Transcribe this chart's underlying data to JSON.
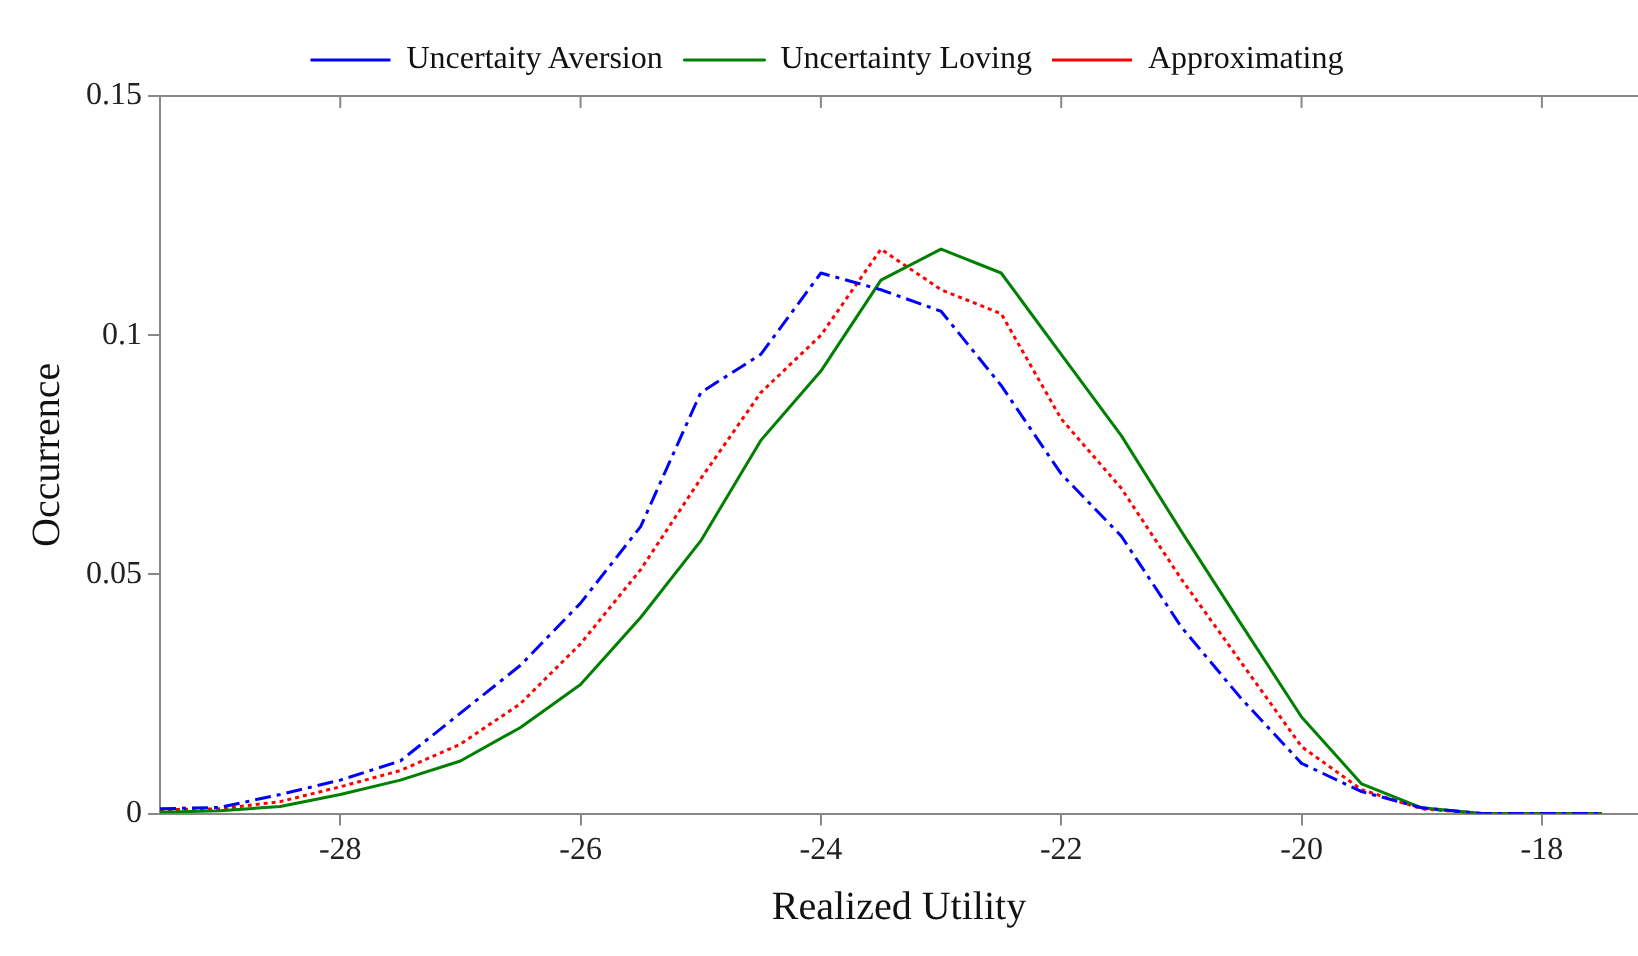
{
  "chart_data": {
    "type": "line",
    "xlabel": "Realized Utility",
    "ylabel": "Occurrence",
    "x": [
      -29.5,
      -29,
      -28.5,
      -28,
      -27.5,
      -27,
      -26.5,
      -26,
      -25.5,
      -25,
      -24.5,
      -24,
      -23.5,
      -23,
      -22.5,
      -22,
      -21.5,
      -21,
      -20.5,
      -20,
      -19.5,
      -19,
      -18.5,
      -18,
      -17.5
    ],
    "series": [
      {
        "name": "Uncertaity Aversion",
        "color": "#0000ff",
        "line_style": "dashed",
        "values": [
          0.001,
          0.0013,
          0.004,
          0.007,
          0.011,
          0.021,
          0.031,
          0.044,
          0.06,
          0.088,
          0.096,
          0.113,
          0.1095,
          0.105,
          0.0895,
          0.071,
          0.058,
          0.039,
          0.024,
          0.0105,
          0.0046,
          0.0012,
          0,
          0,
          0
        ]
      },
      {
        "name": "Uncertainty Loving",
        "color": "#008000",
        "line_style": "solid",
        "values": [
          0.0003,
          0.0006,
          0.0015,
          0.004,
          0.007,
          0.011,
          0.018,
          0.027,
          0.041,
          0.057,
          0.078,
          0.0925,
          0.1115,
          0.118,
          0.113,
          0.096,
          0.079,
          0.059,
          0.0395,
          0.0202,
          0.0062,
          0.0012,
          0,
          0,
          0
        ]
      },
      {
        "name": "Approximating",
        "color": "#ff0000",
        "line_style": "dotted",
        "values": [
          0.0008,
          0.001,
          0.0025,
          0.0056,
          0.009,
          0.0145,
          0.023,
          0.0355,
          0.051,
          0.07,
          0.088,
          0.1,
          0.118,
          0.1095,
          0.1045,
          0.0825,
          0.068,
          0.049,
          0.0315,
          0.014,
          0.005,
          0.001,
          0,
          0,
          0
        ]
      }
    ],
    "xlim": [
      -29.5,
      -17.2
    ],
    "xticks": [
      -28,
      -26,
      -24,
      -22,
      -20,
      -18
    ],
    "ylim": [
      0,
      0.15
    ],
    "yticks": [
      0,
      0.05,
      0.1,
      0.15
    ],
    "grid": false,
    "legend": "top",
    "marker": "none"
  }
}
